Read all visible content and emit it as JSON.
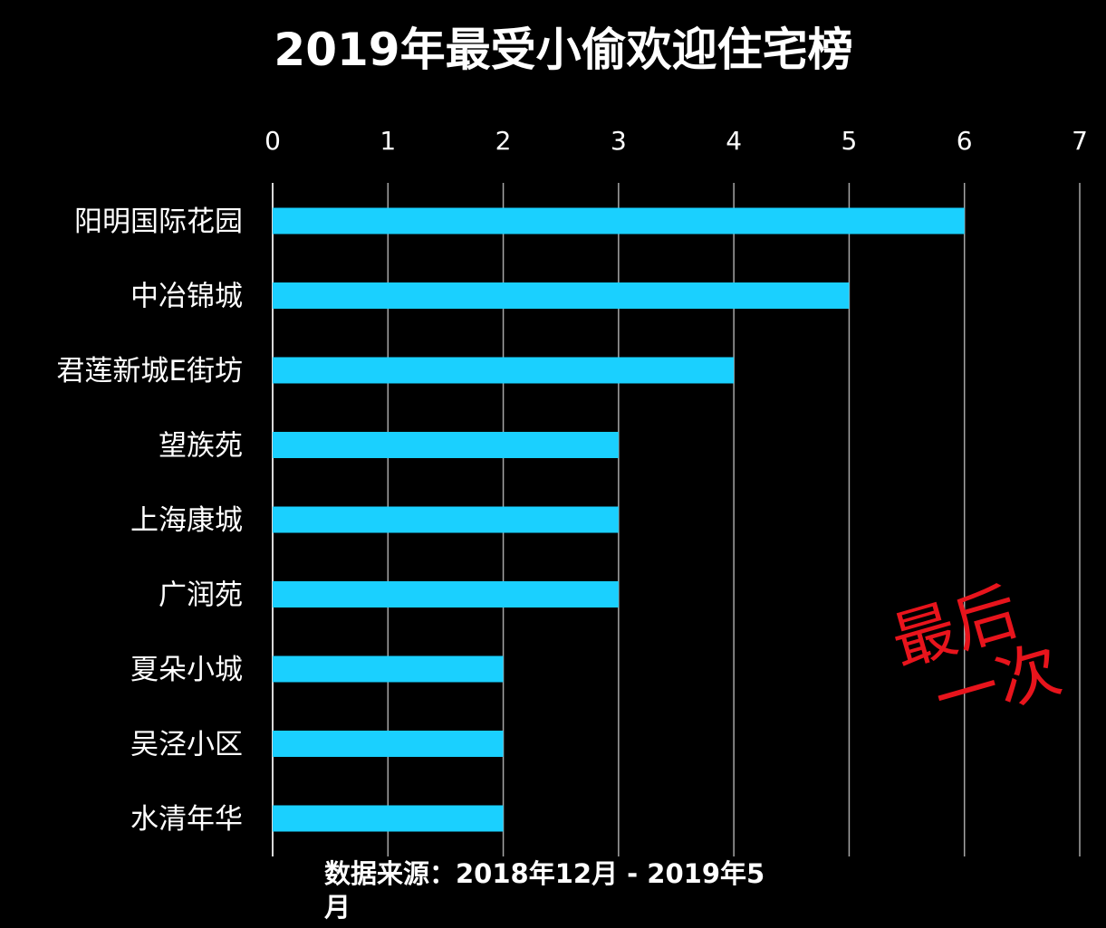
{
  "chart_data": {
    "type": "bar",
    "orientation": "horizontal",
    "title": "2019年最受小偷欢迎住宅榜",
    "categories": [
      "阳明国际花园",
      "中冶锦城",
      "君莲新城E街坊",
      "望族苑",
      "上海康城",
      "广润苑",
      "夏朵小城",
      "吴泾小区",
      "水清年华"
    ],
    "values": [
      6,
      5,
      4,
      3,
      3,
      3,
      2,
      2,
      2
    ],
    "xlim": [
      0,
      7
    ],
    "xticks": [
      "0",
      "1",
      "2",
      "3",
      "4",
      "5",
      "6",
      "7"
    ],
    "x_axis_position": "top",
    "grid": true,
    "bar_color": "#1ad0ff",
    "background_color": "#000000"
  },
  "source_note": {
    "line1": "数据来源：2018年12月 - 2019年5",
    "line2": "月"
  },
  "stamp": {
    "line1": "最后",
    "line2": "一次",
    "color": "#e8141c"
  }
}
